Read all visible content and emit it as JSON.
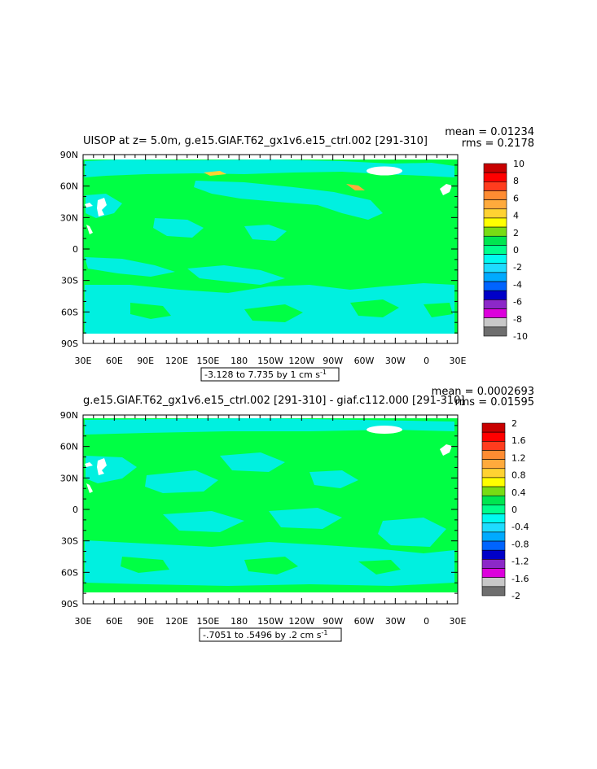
{
  "chart_data": [
    {
      "type": "heatmap",
      "title": "UISOP at z=    5.0m, g.e15.GIAF.T62_gx1v6.e15_ctrl.002 [291-310]",
      "stats": {
        "mean_label": "mean = 0.01234",
        "rms_label": "rms = 0.2178"
      },
      "range_label": "-3.128 to 7.735 by 1 cm s",
      "range_exponent": "-1",
      "x_ticks": [
        "30E",
        "60E",
        "90E",
        "120E",
        "150E",
        "180",
        "150W",
        "120W",
        "90W",
        "60W",
        "30W",
        "0",
        "30E"
      ],
      "y_ticks": [
        "90N",
        "60N",
        "30N",
        "0",
        "30S",
        "60S",
        "90S"
      ],
      "legend": {
        "labels": [
          "10",
          "8",
          "6",
          "4",
          "2",
          "0",
          "-2",
          "-4",
          "-6",
          "-8",
          "-10"
        ],
        "colors": [
          "#c80000",
          "#ff0000",
          "#ff3c1e",
          "#ff8c32",
          "#ffaa3c",
          "#ffd232",
          "#ffff00",
          "#78dc14",
          "#00e650",
          "#00ff8c",
          "#00faf0",
          "#1edcff",
          "#00aaff",
          "#0064ff",
          "#0000c8",
          "#8c28c8",
          "#dc00dc",
          "#c8c8c8",
          "#6e6e6e"
        ]
      }
    },
    {
      "type": "heatmap",
      "title": "g.e15.GIAF.T62_gx1v6.e15_ctrl.002 [291-310] - giaf.c112.000 [291-310]",
      "stats": {
        "mean_label": "mean = 0.0002693",
        "rms_label": "rms = 0.01595"
      },
      "range_label": "-.7051 to .5496 by .2 cm s",
      "range_exponent": "-1",
      "x_ticks": [
        "30E",
        "60E",
        "90E",
        "120E",
        "150E",
        "180",
        "150W",
        "120W",
        "90W",
        "60W",
        "30W",
        "0",
        "30E"
      ],
      "y_ticks": [
        "90N",
        "60N",
        "30N",
        "0",
        "30S",
        "60S",
        "90S"
      ],
      "legend": {
        "labels": [
          "2",
          "1.6",
          "1.2",
          "0.8",
          "0.4",
          "0",
          "-0.4",
          "-0.8",
          "-1.2",
          "-1.6",
          "-2"
        ],
        "colors": [
          "#c80000",
          "#ff0000",
          "#ff3c1e",
          "#ff8c32",
          "#ffaa3c",
          "#ffd232",
          "#ffff00",
          "#78dc14",
          "#00e650",
          "#00ff8c",
          "#00faf0",
          "#1edcff",
          "#00aaff",
          "#0064ff",
          "#0000c8",
          "#8c28c8",
          "#dc00dc",
          "#c8c8c8",
          "#6e6e6e"
        ]
      }
    }
  ],
  "palette": {
    "field_green": "#00ff44",
    "field_cyan": "#00f0e0"
  }
}
